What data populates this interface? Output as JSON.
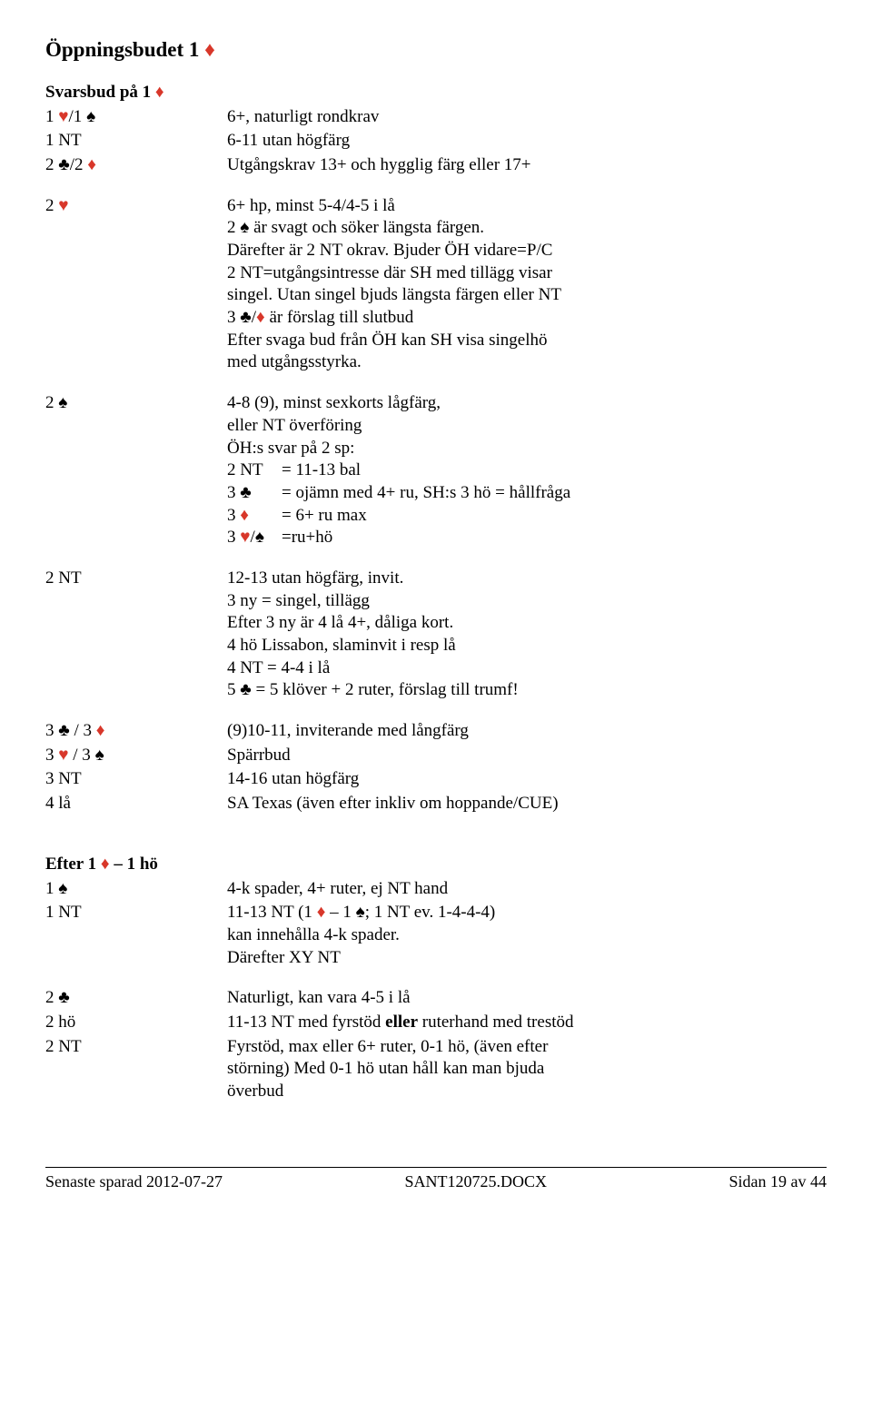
{
  "colors": {
    "red": "#d8372a",
    "text": "#000000"
  },
  "suits": {
    "club": "♣",
    "diamond": "♦",
    "heart": "♥",
    "spade": "♠"
  },
  "heading": {
    "prefix": "Öppningsbudet  1 ",
    "suit": "diamond"
  },
  "section1": {
    "title_prefix": "Svarsbud på 1 ",
    "title_suit": "diamond",
    "rows": [
      {
        "bid": [
          {
            "t": "1 "
          },
          {
            "s": "heart"
          },
          {
            "t": "/1 "
          },
          {
            "s": "spade"
          }
        ],
        "desc": "6+, naturligt rondkrav"
      },
      {
        "bid": [
          {
            "t": "1 NT"
          }
        ],
        "desc": "6-11 utan högfärg"
      },
      {
        "bid": [
          {
            "t": "2 "
          },
          {
            "s": "club"
          },
          {
            "t": "/2 "
          },
          {
            "s": "diamond"
          }
        ],
        "desc": "Utgångskrav 13+ och hygglig färg eller 17+"
      }
    ]
  },
  "section2": {
    "bid": [
      {
        "t": "2 "
      },
      {
        "s": "heart"
      }
    ],
    "lines": [
      [
        {
          "t": "6+ hp, minst 5-4/4-5 i lå"
        }
      ],
      [
        {
          "t": "2 "
        },
        {
          "s": "spade"
        },
        {
          "t": " är svagt och söker längsta färgen."
        }
      ],
      [
        {
          "t": "Därefter är 2 NT okrav. Bjuder ÖH vidare=P/C"
        }
      ],
      [
        {
          "t": "2 NT=utgångsintresse där SH med tillägg visar"
        }
      ],
      [
        {
          "t": "singel. Utan singel bjuds längsta färgen eller NT"
        }
      ],
      [
        {
          "t": "3 "
        },
        {
          "s": "club"
        },
        {
          "t": "/"
        },
        {
          "s": "diamond"
        },
        {
          "t": " är förslag till slutbud"
        }
      ],
      [
        {
          "t": "Efter svaga bud från ÖH kan SH visa singelhö"
        }
      ],
      [
        {
          "t": "med utgångsstyrka."
        }
      ]
    ]
  },
  "section3": {
    "bid": [
      {
        "t": "2 "
      },
      {
        "s": "spade"
      }
    ],
    "lines": [
      [
        {
          "t": "4-8 (9), minst sexkorts lågfärg,"
        }
      ],
      [
        {
          "t": "eller NT överföring"
        }
      ],
      [
        {
          "t": "ÖH:s svar på 2 sp:"
        }
      ]
    ],
    "sublines": [
      {
        "k": [
          {
            "t": "2 NT"
          }
        ],
        "v": "= 11-13 bal"
      },
      {
        "k": [
          {
            "t": "3 "
          },
          {
            "s": "club",
            "outline": true
          }
        ],
        "v": "= ojämn med 4+ ru, SH:s 3 hö = hållfråga"
      },
      {
        "k": [
          {
            "t": "3 "
          },
          {
            "s": "diamond"
          }
        ],
        "v": "= 6+ ru max"
      },
      {
        "k": [
          {
            "t": "3 "
          },
          {
            "s": "heart"
          },
          {
            "t": "/"
          },
          {
            "s": "spade",
            "outline": true
          }
        ],
        "v": "=ru+hö"
      }
    ]
  },
  "section4": {
    "bid": [
      {
        "t": "2 NT"
      }
    ],
    "lines": [
      [
        {
          "t": "12-13 utan högfärg, invit."
        }
      ],
      [
        {
          "t": "3 ny = singel, tillägg"
        }
      ],
      [
        {
          "t": "Efter 3 ny är 4 lå 4+, dåliga kort."
        }
      ],
      [
        {
          "t": "4 hö Lissabon, slaminvit i resp lå"
        }
      ],
      [
        {
          "t": "4 NT = 4-4 i lå"
        }
      ],
      [
        {
          "t": "5 "
        },
        {
          "s": "club"
        },
        {
          "t": " = 5 klöver + 2 ruter, förslag till trumf!"
        }
      ]
    ]
  },
  "section5": {
    "rows": [
      {
        "bid": [
          {
            "t": "3 "
          },
          {
            "s": "club"
          },
          {
            "t": " / 3 "
          },
          {
            "s": "diamond"
          }
        ],
        "desc": "(9)10-11, inviterande med långfärg"
      },
      {
        "bid": [
          {
            "t": "3 "
          },
          {
            "s": "heart"
          },
          {
            "t": " / 3 "
          },
          {
            "s": "spade"
          }
        ],
        "desc": "Spärrbud"
      },
      {
        "bid": [
          {
            "t": "3 NT"
          }
        ],
        "desc": "14-16 utan högfärg"
      },
      {
        "bid": [
          {
            "t": "4 lå"
          }
        ],
        "desc": "SA Texas (även efter inkliv om hoppande/CUE)"
      }
    ]
  },
  "section6": {
    "title": [
      {
        "t": "Efter 1 "
      },
      {
        "s": "diamond"
      },
      {
        "t": " – 1 hö"
      }
    ],
    "rows": [
      {
        "bid": [
          {
            "t": "1 "
          },
          {
            "s": "spade"
          }
        ],
        "desc_segments": [
          [
            {
              "t": "4-k spader, 4+ ruter, ej NT hand"
            }
          ]
        ]
      },
      {
        "bid": [
          {
            "t": "1 NT"
          }
        ],
        "desc_segments": [
          [
            {
              "t": "11-13 NT (1 "
            },
            {
              "s": "diamond"
            },
            {
              "t": " – 1 "
            },
            {
              "s": "spade"
            },
            {
              "t": "; 1 NT  ev. 1-4-4-4)"
            }
          ],
          [
            {
              "t": "kan innehålla 4-k spader."
            }
          ],
          [
            {
              "t": "Därefter XY NT"
            }
          ]
        ]
      }
    ]
  },
  "section7": {
    "rows": [
      {
        "bid": [
          {
            "t": "2 "
          },
          {
            "s": "club"
          }
        ],
        "desc_segments": [
          [
            {
              "t": "Naturligt, kan vara 4-5 i lå"
            }
          ]
        ]
      },
      {
        "bid": [
          {
            "t": "2 hö"
          }
        ],
        "desc_segments": [
          [
            {
              "t": "11-13 NT med fyrstöd "
            },
            {
              "b": "eller"
            },
            {
              "t": " ruterhand med trestöd"
            }
          ]
        ]
      },
      {
        "bid": [
          {
            "t": "2 NT"
          }
        ],
        "desc_segments": [
          [
            {
              "t": "Fyrstöd, max eller 6+ ruter, 0-1 hö, (även efter"
            }
          ],
          [
            {
              "t": "störning) Med 0-1 hö utan håll kan man bjuda"
            }
          ],
          [
            {
              "t": "överbud"
            }
          ]
        ]
      }
    ]
  },
  "footer": {
    "left": "Senaste sparad 2012-07-27",
    "center": "SANT120725.DOCX",
    "right": "Sidan 19 av 44"
  }
}
